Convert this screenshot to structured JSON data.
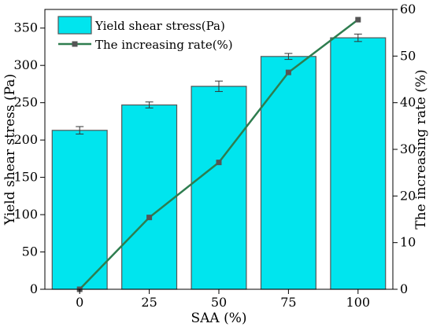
{
  "chart_data": {
    "type": "bar",
    "categories": [
      "0",
      "25",
      "50",
      "75",
      "100"
    ],
    "xlabel": "SAA (%)",
    "ylabel_left": "Yield shear stress (Pa)",
    "ylabel_right": "The increasing rate (%)",
    "ylim_left": [
      0,
      375
    ],
    "ylim_right": [
      0,
      60
    ],
    "yticks_left": [
      "0",
      "50",
      "100",
      "150",
      "200",
      "250",
      "300",
      "350"
    ],
    "yticks_right": [
      "0",
      "10",
      "20",
      "30",
      "40",
      "50",
      "60"
    ],
    "series": [
      {
        "name": "Yield shear stress(Pa)",
        "kind": "bar",
        "axis": "left",
        "values": [
          213,
          247,
          272,
          312,
          337
        ],
        "errors": [
          5,
          4,
          7,
          4,
          5
        ]
      },
      {
        "name": "The increasing rate(%)",
        "kind": "line",
        "axis": "right",
        "values": [
          0,
          15.4,
          27.2,
          46.5,
          57.8
        ]
      }
    ],
    "legend_position": "top-left",
    "grid": false,
    "colors": {
      "bar_fill": "#00e5ee",
      "bar_edge": "#555555",
      "line": "#2e7d4f",
      "marker": "#555555"
    }
  }
}
